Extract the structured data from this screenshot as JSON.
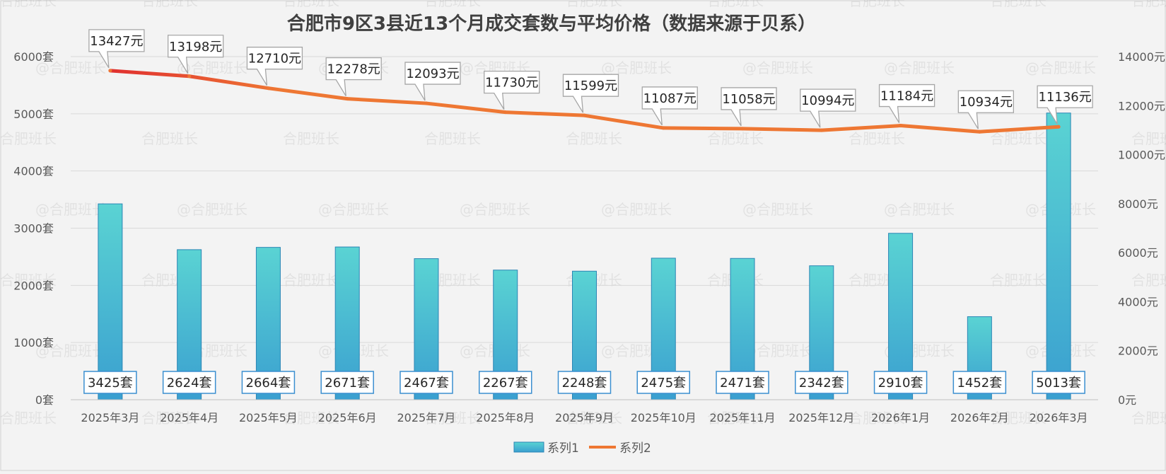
{
  "chart_data": {
    "type": "bar+line",
    "title": "合肥市9区3县近13个月成交套数与平均价格（数据来源于贝系）",
    "categories": [
      "2025年3月",
      "2025年4月",
      "2025年5月",
      "2025年6月",
      "2025年7月",
      "2025年8月",
      "2025年9月",
      "2025年10月",
      "2025年11月",
      "2025年12月",
      "2026年1月",
      "2026年2月",
      "2026年3月"
    ],
    "series": [
      {
        "name": "系列1",
        "type": "bar",
        "axis": "left",
        "values": [
          3425,
          2624,
          2664,
          2671,
          2467,
          2267,
          2248,
          2475,
          2471,
          2342,
          2910,
          1452,
          5013
        ],
        "labels": [
          "3425套",
          "2624套",
          "2664套",
          "2671套",
          "2467套",
          "2267套",
          "2248套",
          "2475套",
          "2471套",
          "2342套",
          "2910套",
          "1452套",
          "5013套"
        ],
        "color_top": "#5ad3d3",
        "color_bottom": "#3a9fd0"
      },
      {
        "name": "系列2",
        "type": "line",
        "axis": "right",
        "values": [
          13427,
          13198,
          12710,
          12278,
          12093,
          11730,
          11599,
          11087,
          11058,
          10994,
          11184,
          10934,
          11136
        ],
        "labels": [
          "13427元",
          "13198元",
          "12710元",
          "12278元",
          "12093元",
          "11730元",
          "11599元",
          "11087元",
          "11058元",
          "10994元",
          "11184元",
          "10934元",
          "11136元"
        ],
        "color": "#ee7733",
        "color_start": "#e03030"
      }
    ],
    "y_left": {
      "ylim": [
        0,
        6000
      ],
      "ticks": [
        0,
        1000,
        2000,
        3000,
        4000,
        5000,
        6000
      ],
      "tick_labels": [
        "0套",
        "1000套",
        "2000套",
        "3000套",
        "4000套",
        "5000套",
        "6000套"
      ]
    },
    "y_right": {
      "ylim": [
        0,
        14000
      ],
      "ticks": [
        0,
        2000,
        4000,
        6000,
        8000,
        10000,
        12000,
        14000
      ],
      "tick_labels": [
        "0元",
        "2000元",
        "4000元",
        "6000元",
        "8000元",
        "10000元",
        "12000元",
        "14000元"
      ]
    },
    "grid": true,
    "legend": "bottom-center",
    "watermark": [
      "合肥班长",
      "@合肥班长"
    ]
  }
}
